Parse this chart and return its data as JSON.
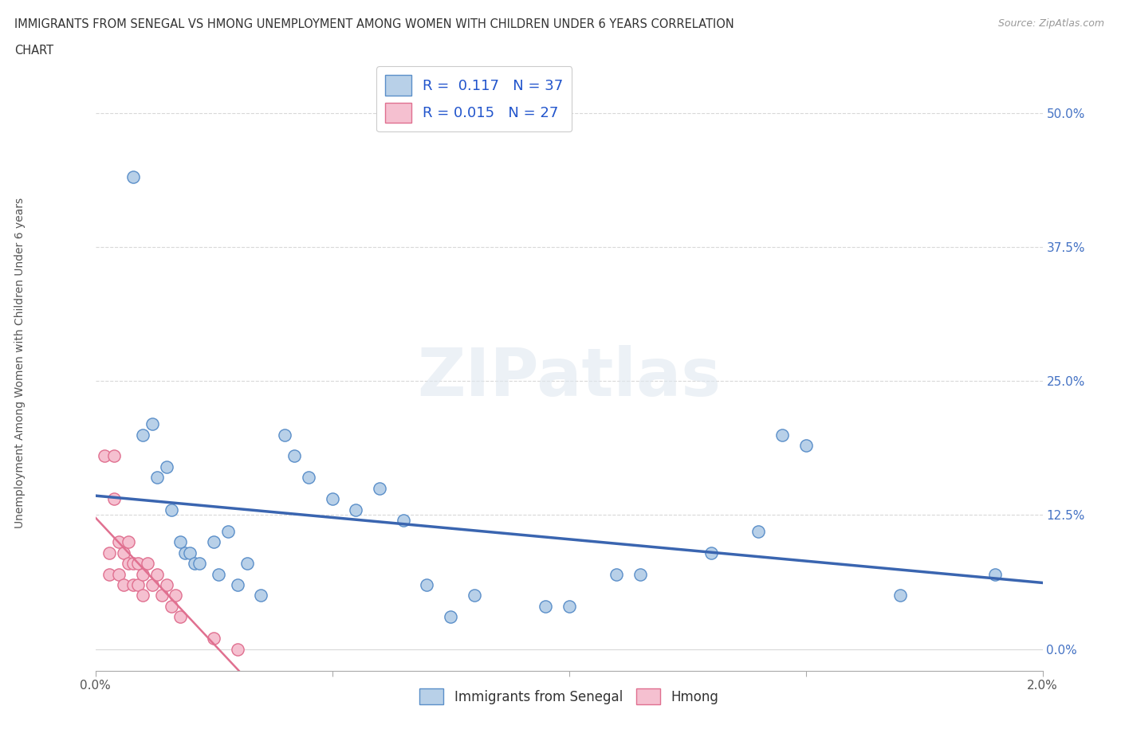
{
  "title_line1": "IMMIGRANTS FROM SENEGAL VS HMONG UNEMPLOYMENT AMONG WOMEN WITH CHILDREN UNDER 6 YEARS CORRELATION",
  "title_line2": "CHART",
  "source": "Source: ZipAtlas.com",
  "ylabel": "Unemployment Among Women with Children Under 6 years",
  "senegal_R": 0.117,
  "senegal_N": 37,
  "hmong_R": 0.015,
  "hmong_N": 27,
  "senegal_color": "#b8d0e8",
  "senegal_edge_color": "#5b8fc9",
  "hmong_color": "#f5c0d0",
  "hmong_edge_color": "#e07090",
  "senegal_line_color": "#3a65b0",
  "hmong_line_color": "#e07090",
  "senegal_scatter": [
    [
      0.0008,
      0.44
    ],
    [
      0.001,
      0.2
    ],
    [
      0.0012,
      0.21
    ],
    [
      0.0013,
      0.16
    ],
    [
      0.0015,
      0.17
    ],
    [
      0.0016,
      0.13
    ],
    [
      0.0018,
      0.1
    ],
    [
      0.0019,
      0.09
    ],
    [
      0.002,
      0.09
    ],
    [
      0.0021,
      0.08
    ],
    [
      0.0022,
      0.08
    ],
    [
      0.0025,
      0.1
    ],
    [
      0.0026,
      0.07
    ],
    [
      0.0028,
      0.11
    ],
    [
      0.003,
      0.06
    ],
    [
      0.0032,
      0.08
    ],
    [
      0.0035,
      0.05
    ],
    [
      0.004,
      0.2
    ],
    [
      0.0042,
      0.18
    ],
    [
      0.0045,
      0.16
    ],
    [
      0.005,
      0.14
    ],
    [
      0.0055,
      0.13
    ],
    [
      0.006,
      0.15
    ],
    [
      0.0065,
      0.12
    ],
    [
      0.007,
      0.06
    ],
    [
      0.0075,
      0.03
    ],
    [
      0.008,
      0.05
    ],
    [
      0.0095,
      0.04
    ],
    [
      0.01,
      0.04
    ],
    [
      0.011,
      0.07
    ],
    [
      0.0115,
      0.07
    ],
    [
      0.013,
      0.09
    ],
    [
      0.014,
      0.11
    ],
    [
      0.0145,
      0.2
    ],
    [
      0.015,
      0.19
    ],
    [
      0.017,
      0.05
    ],
    [
      0.019,
      0.07
    ]
  ],
  "hmong_scatter": [
    [
      0.0002,
      0.18
    ],
    [
      0.0003,
      0.09
    ],
    [
      0.0003,
      0.07
    ],
    [
      0.0004,
      0.18
    ],
    [
      0.0004,
      0.14
    ],
    [
      0.0005,
      0.1
    ],
    [
      0.0005,
      0.07
    ],
    [
      0.0006,
      0.09
    ],
    [
      0.0006,
      0.06
    ],
    [
      0.0007,
      0.1
    ],
    [
      0.0007,
      0.08
    ],
    [
      0.0008,
      0.08
    ],
    [
      0.0008,
      0.06
    ],
    [
      0.0009,
      0.08
    ],
    [
      0.0009,
      0.06
    ],
    [
      0.001,
      0.07
    ],
    [
      0.001,
      0.05
    ],
    [
      0.0011,
      0.08
    ],
    [
      0.0012,
      0.06
    ],
    [
      0.0013,
      0.07
    ],
    [
      0.0014,
      0.05
    ],
    [
      0.0015,
      0.06
    ],
    [
      0.0016,
      0.04
    ],
    [
      0.0017,
      0.05
    ],
    [
      0.0018,
      0.03
    ],
    [
      0.0025,
      0.01
    ],
    [
      0.003,
      0.0
    ]
  ],
  "xlim": [
    0.0,
    0.02
  ],
  "ylim": [
    -0.02,
    0.55
  ],
  "y_ticks": [
    0.0,
    0.125,
    0.25,
    0.375,
    0.5
  ],
  "y_tick_labels": [
    "0.0%",
    "12.5%",
    "25.0%",
    "37.5%",
    "50.0%"
  ],
  "x_ticks": [
    0.0,
    0.005,
    0.01,
    0.015,
    0.02
  ],
  "x_tick_labels": [
    "0.0%",
    "",
    "",
    "",
    "2.0%"
  ],
  "watermark_text": "ZIPatlas",
  "background_color": "#ffffff",
  "grid_color": "#d8d8d8",
  "legend_senegal_label": "Immigrants from Senegal",
  "legend_hmong_label": "Hmong"
}
